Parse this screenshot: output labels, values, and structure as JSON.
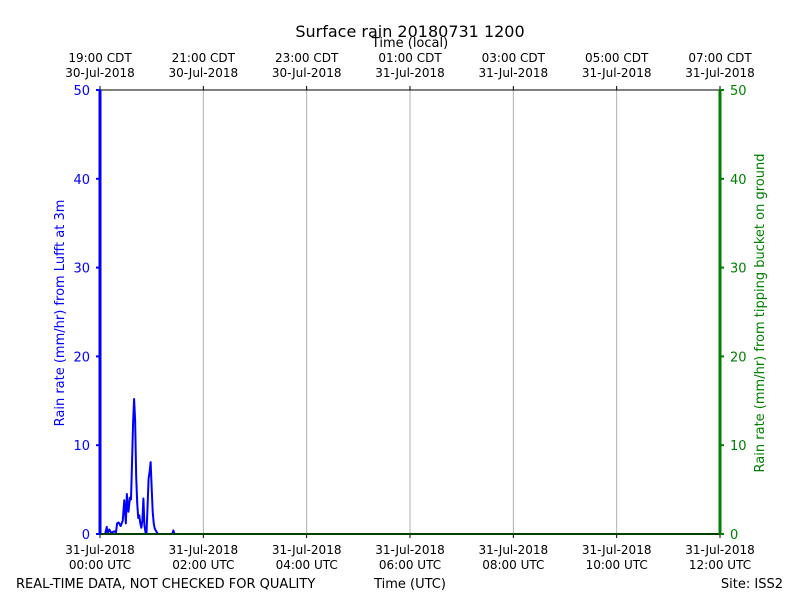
{
  "chart_data": {
    "type": "line",
    "title": "Surface rain 20180731 1200",
    "top_axis": {
      "label": "Time (local)",
      "ticks": [
        [
          "19:00 CDT",
          "30-Jul-2018"
        ],
        [
          "21:00 CDT",
          "30-Jul-2018"
        ],
        [
          "23:00 CDT",
          "30-Jul-2018"
        ],
        [
          "01:00 CDT",
          "31-Jul-2018"
        ],
        [
          "03:00 CDT",
          "31-Jul-2018"
        ],
        [
          "05:00 CDT",
          "31-Jul-2018"
        ],
        [
          "07:00 CDT",
          "31-Jul-2018"
        ]
      ]
    },
    "x_axis": {
      "label": "Time (UTC)",
      "unit": "hours UTC, 31-Jul-2018",
      "range": [
        0,
        12
      ],
      "ticks": [
        [
          "31-Jul-2018",
          "00:00 UTC"
        ],
        [
          "31-Jul-2018",
          "02:00 UTC"
        ],
        [
          "31-Jul-2018",
          "04:00 UTC"
        ],
        [
          "31-Jul-2018",
          "06:00 UTC"
        ],
        [
          "31-Jul-2018",
          "08:00 UTC"
        ],
        [
          "31-Jul-2018",
          "10:00 UTC"
        ],
        [
          "31-Jul-2018",
          "12:00 UTC"
        ]
      ]
    },
    "y_left": {
      "label": "Rain rate (mm/hr) from Lufft at 3m",
      "range": [
        0,
        50
      ],
      "ticks": [
        "0",
        "10",
        "20",
        "30",
        "40",
        "50"
      ],
      "color": "#0000ff"
    },
    "y_right": {
      "label": "Rain rate (mm/hr) from tipping bucket on ground",
      "range": [
        0,
        50
      ],
      "ticks": [
        "0",
        "10",
        "20",
        "30",
        "40",
        "50"
      ],
      "color": "#008000"
    },
    "grid": "vertical at x ticks",
    "series": [
      {
        "axis": "left",
        "color": "#0000ff",
        "x": [
          0.0,
          0.05,
          0.1,
          0.13,
          0.15,
          0.18,
          0.22,
          0.27,
          0.31,
          0.33,
          0.36,
          0.4,
          0.44,
          0.47,
          0.5,
          0.52,
          0.55,
          0.58,
          0.6,
          0.62,
          0.64,
          0.66,
          0.68,
          0.7,
          0.72,
          0.74,
          0.76,
          0.78,
          0.8,
          0.82,
          0.84,
          0.86,
          0.88,
          0.9,
          0.92,
          0.94,
          0.96,
          0.98,
          1.0,
          1.02,
          1.04,
          1.06,
          1.08,
          1.1,
          1.12,
          1.14,
          1.16,
          1.18,
          1.2,
          1.22,
          1.25,
          1.3,
          1.35,
          1.4,
          1.42,
          1.44,
          1.5,
          2.0,
          4.0,
          6.0,
          8.0,
          10.0,
          12.0
        ],
        "values": [
          0.0,
          0.0,
          0.0,
          0.8,
          0.1,
          0.5,
          0.1,
          0.3,
          0.2,
          1.2,
          1.3,
          0.9,
          1.5,
          3.8,
          1.2,
          4.5,
          2.5,
          4.1,
          3.9,
          8.0,
          12.5,
          15.2,
          12.8,
          6.5,
          3.5,
          1.8,
          2.1,
          1.2,
          0.7,
          1.5,
          4.0,
          1.0,
          0.2,
          0.1,
          3.0,
          6.2,
          7.0,
          8.1,
          5.2,
          2.5,
          1.2,
          0.6,
          0.4,
          0.2,
          0.0,
          0.0,
          0.0,
          0.0,
          0.0,
          0.0,
          0.0,
          0.0,
          0.0,
          0.0,
          0.4,
          0.0,
          0.0,
          0.0,
          0.0,
          0.0,
          0.0,
          0.0,
          0.0
        ]
      },
      {
        "axis": "right",
        "color": "#008000",
        "x": [
          0,
          12
        ],
        "values": [
          0,
          0
        ]
      }
    ]
  },
  "footer": {
    "disclaimer": "REAL-TIME DATA, NOT CHECKED FOR QUALITY",
    "site": "Site: ISS2"
  }
}
